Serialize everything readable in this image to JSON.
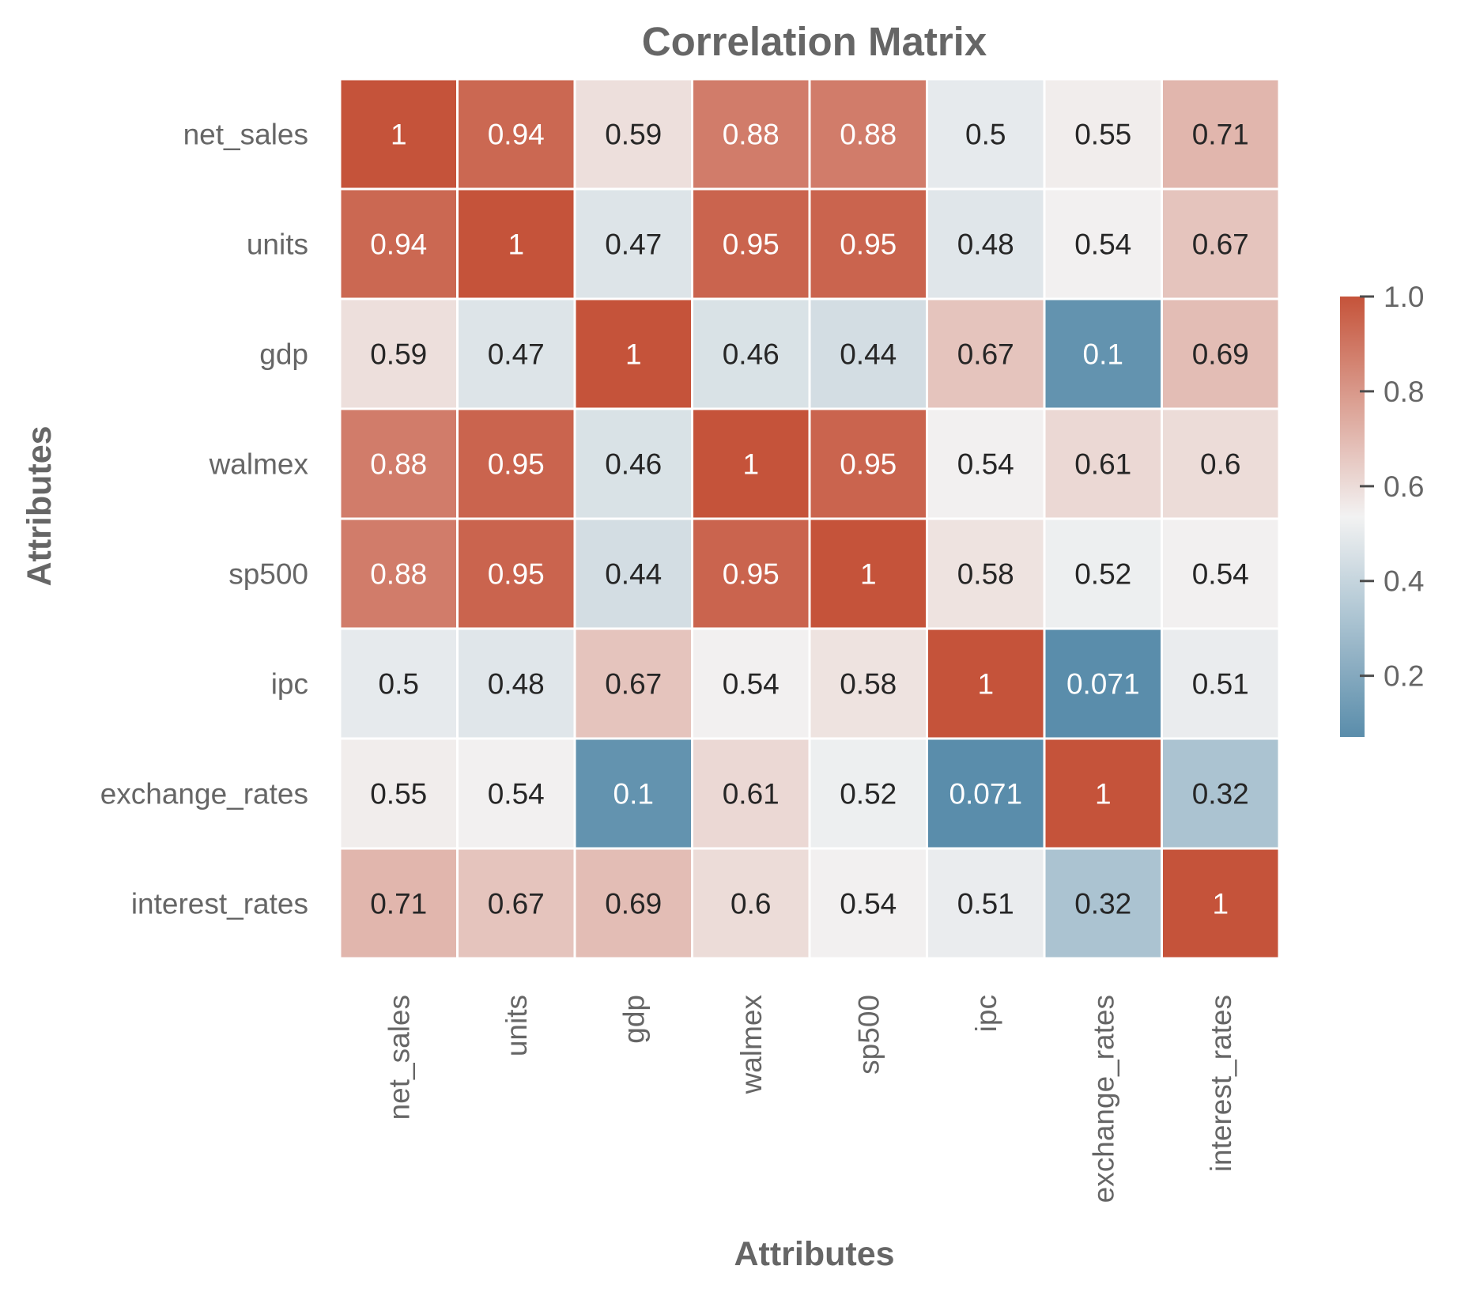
{
  "chart_data": {
    "type": "heatmap",
    "title": "Correlation Matrix",
    "xlabel": "Attributes",
    "ylabel": "Attributes",
    "x_categories": [
      "net_sales",
      "units",
      "gdp",
      "walmex",
      "sp500",
      "ipc",
      "exchange_rates",
      "interest_rates"
    ],
    "y_categories": [
      "net_sales",
      "units",
      "gdp",
      "walmex",
      "sp500",
      "ipc",
      "exchange_rates",
      "interest_rates"
    ],
    "values": [
      [
        1,
        0.94,
        0.59,
        0.88,
        0.88,
        0.5,
        0.55,
        0.71
      ],
      [
        0.94,
        1,
        0.47,
        0.95,
        0.95,
        0.48,
        0.54,
        0.67
      ],
      [
        0.59,
        0.47,
        1,
        0.46,
        0.44,
        0.67,
        0.1,
        0.69
      ],
      [
        0.88,
        0.95,
        0.46,
        1,
        0.95,
        0.54,
        0.61,
        0.6
      ],
      [
        0.88,
        0.95,
        0.44,
        0.95,
        1,
        0.58,
        0.52,
        0.54
      ],
      [
        0.5,
        0.48,
        0.67,
        0.54,
        0.58,
        1,
        0.071,
        0.51
      ],
      [
        0.55,
        0.54,
        0.1,
        0.61,
        0.52,
        0.071,
        1,
        0.32
      ],
      [
        0.71,
        0.67,
        0.69,
        0.6,
        0.54,
        0.51,
        0.32,
        1
      ]
    ],
    "cell_labels": [
      [
        "1",
        "0.94",
        "0.59",
        "0.88",
        "0.88",
        "0.5",
        "0.55",
        "0.71"
      ],
      [
        "0.94",
        "1",
        "0.47",
        "0.95",
        "0.95",
        "0.48",
        "0.54",
        "0.67"
      ],
      [
        "0.59",
        "0.47",
        "1",
        "0.46",
        "0.44",
        "0.67",
        "0.1",
        "0.69"
      ],
      [
        "0.88",
        "0.95",
        "0.46",
        "1",
        "0.95",
        "0.54",
        "0.61",
        "0.6"
      ],
      [
        "0.88",
        "0.95",
        "0.44",
        "0.95",
        "1",
        "0.58",
        "0.52",
        "0.54"
      ],
      [
        "0.5",
        "0.48",
        "0.67",
        "0.54",
        "0.58",
        "1",
        "0.071",
        "0.51"
      ],
      [
        "0.55",
        "0.54",
        "0.1",
        "0.61",
        "0.52",
        "0.071",
        "1",
        "0.32"
      ],
      [
        "0.71",
        "0.67",
        "0.69",
        "0.6",
        "0.54",
        "0.51",
        "0.32",
        "1"
      ]
    ],
    "colorbar": {
      "vmin": 0.071,
      "vmax": 1.0,
      "ticks": [
        0.2,
        0.4,
        0.6,
        0.8,
        1.0
      ],
      "tick_labels": [
        "0.2",
        "0.4",
        "0.6",
        "0.8",
        "1.0"
      ]
    },
    "colors": {
      "low": "#5a8dab",
      "mid": "#f2f2f2",
      "high": "#c5533a",
      "text_dark": "#262626",
      "text_light": "#ffffff",
      "label": "#666666",
      "cell_border": "#ffffff"
    },
    "grid": false,
    "legend": "colorbar-right"
  }
}
